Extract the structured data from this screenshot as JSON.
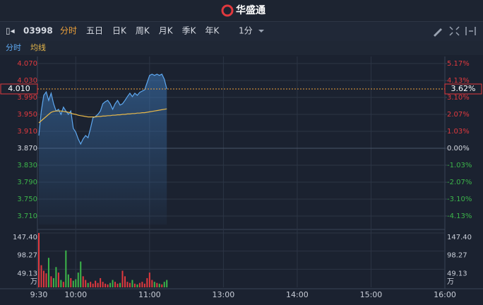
{
  "header": {
    "logo": "华盛通"
  },
  "toolbar": {
    "code": "03998",
    "tabs": [
      "分时",
      "五日",
      "日K",
      "周K",
      "月K",
      "季K",
      "年K"
    ],
    "interval": "1分"
  },
  "chart_data": {
    "type": "line",
    "legend": [
      "分时",
      "均线"
    ],
    "x": [
      0,
      2,
      4,
      6,
      8,
      10,
      12,
      14,
      16,
      18,
      20,
      22,
      24,
      26,
      28,
      30,
      32,
      34,
      36,
      38,
      40,
      42,
      44,
      46,
      48,
      50,
      52,
      54,
      56,
      58,
      60,
      62,
      64,
      66,
      68,
      70,
      72,
      74,
      76,
      78,
      80,
      82,
      84,
      86,
      88,
      90,
      92,
      94,
      96,
      98,
      100,
      102,
      104
    ],
    "xlim": [
      0,
      330
    ],
    "xticks": [
      {
        "value": 0,
        "label": "9:30"
      },
      {
        "value": 30,
        "label": "10:00"
      },
      {
        "value": 90,
        "label": "11:00"
      },
      {
        "value": 150,
        "label": "13:00"
      },
      {
        "value": 210,
        "label": "14:00"
      },
      {
        "value": 270,
        "label": "15:00"
      },
      {
        "value": 330,
        "label": "16:00"
      }
    ],
    "series": [
      {
        "name": "分时",
        "color": "#5ea8f0",
        "values": [
          3.9,
          3.958,
          3.995,
          4.003,
          3.983,
          4.0,
          3.975,
          3.958,
          3.962,
          3.95,
          3.967,
          3.958,
          3.95,
          3.958,
          3.917,
          3.908,
          3.892,
          3.88,
          3.892,
          3.9,
          3.895,
          3.917,
          3.942,
          3.945,
          3.95,
          3.958,
          3.975,
          3.98,
          3.983,
          3.975,
          3.962,
          3.975,
          3.983,
          3.972,
          3.975,
          3.983,
          3.992,
          4.0,
          3.992,
          4.0,
          3.995,
          4.002,
          4.005,
          4.008,
          4.025,
          4.042,
          4.045,
          4.042,
          4.045,
          4.042,
          4.045,
          4.033,
          4.01
        ]
      },
      {
        "name": "均线",
        "color": "#e8b84a",
        "values": [
          3.93,
          3.935,
          3.94,
          3.945,
          3.95,
          3.955,
          3.957,
          3.958,
          3.958,
          3.958,
          3.957,
          3.956,
          3.955,
          3.953,
          3.951,
          3.95,
          3.948,
          3.947,
          3.946,
          3.945,
          3.944,
          3.944,
          3.944,
          3.944,
          3.945,
          3.945,
          3.946,
          3.946,
          3.947,
          3.947,
          3.948,
          3.948,
          3.949,
          3.949,
          3.95,
          3.95,
          3.951,
          3.951,
          3.952,
          3.952,
          3.953,
          3.953,
          3.954,
          3.954,
          3.955,
          3.956,
          3.957,
          3.958,
          3.959,
          3.96,
          3.961,
          3.962,
          3.963
        ]
      }
    ],
    "ylim": [
      3.69,
      4.08
    ],
    "yticks": [
      {
        "value": 4.07,
        "label": "4.070"
      },
      {
        "value": 4.03,
        "label": "4.030"
      },
      {
        "value": 3.99,
        "label": "3.990"
      },
      {
        "value": 3.95,
        "label": "3.950"
      },
      {
        "value": 3.91,
        "label": "3.910"
      },
      {
        "value": 3.87,
        "label": "3.870"
      },
      {
        "value": 3.83,
        "label": "3.830"
      },
      {
        "value": 3.79,
        "label": "3.790"
      },
      {
        "value": 3.75,
        "label": "3.750"
      },
      {
        "value": 3.71,
        "label": "3.710"
      }
    ],
    "y2lim": [
      -4.65,
      5.43
    ],
    "y2ticks": [
      {
        "value": 5.17,
        "label": "5.17%"
      },
      {
        "value": 4.13,
        "label": "4.13%"
      },
      {
        "value": 3.1,
        "label": "3.10%"
      },
      {
        "value": 2.07,
        "label": "2.07%"
      },
      {
        "value": 1.03,
        "label": "1.03%"
      },
      {
        "value": 0,
        "label": "0.00%"
      },
      {
        "value": -1.03,
        "label": "-1.03%"
      },
      {
        "value": -2.07,
        "label": "-2.07%"
      },
      {
        "value": -3.1,
        "label": "-3.10%"
      },
      {
        "value": -4.13,
        "label": "-4.13%"
      }
    ],
    "last_price": {
      "value": 4.01,
      "label": "4.010"
    },
    "last_change": {
      "value": 3.62,
      "label": "3.62%"
    },
    "volume": {
      "unit": "万",
      "values": [
        147.4,
        60,
        45,
        38,
        80,
        30,
        25,
        55,
        40,
        20,
        15,
        100,
        35,
        25,
        18,
        22,
        40,
        70,
        30,
        20,
        12,
        15,
        10,
        18,
        12,
        25,
        15,
        10,
        8,
        12,
        20,
        15,
        10,
        12,
        45,
        30,
        15,
        12,
        20,
        10,
        8,
        12,
        15,
        10,
        25,
        40,
        20,
        15,
        12,
        10,
        8,
        15,
        20
      ],
      "ylim": [
        0,
        147.4
      ],
      "yticks": [
        {
          "value": 147.4,
          "label": "147.40"
        },
        98.27,
        49.13
      ]
    },
    "up_color": "#e0393e",
    "down_color": "#3cb54a",
    "grid": true
  }
}
